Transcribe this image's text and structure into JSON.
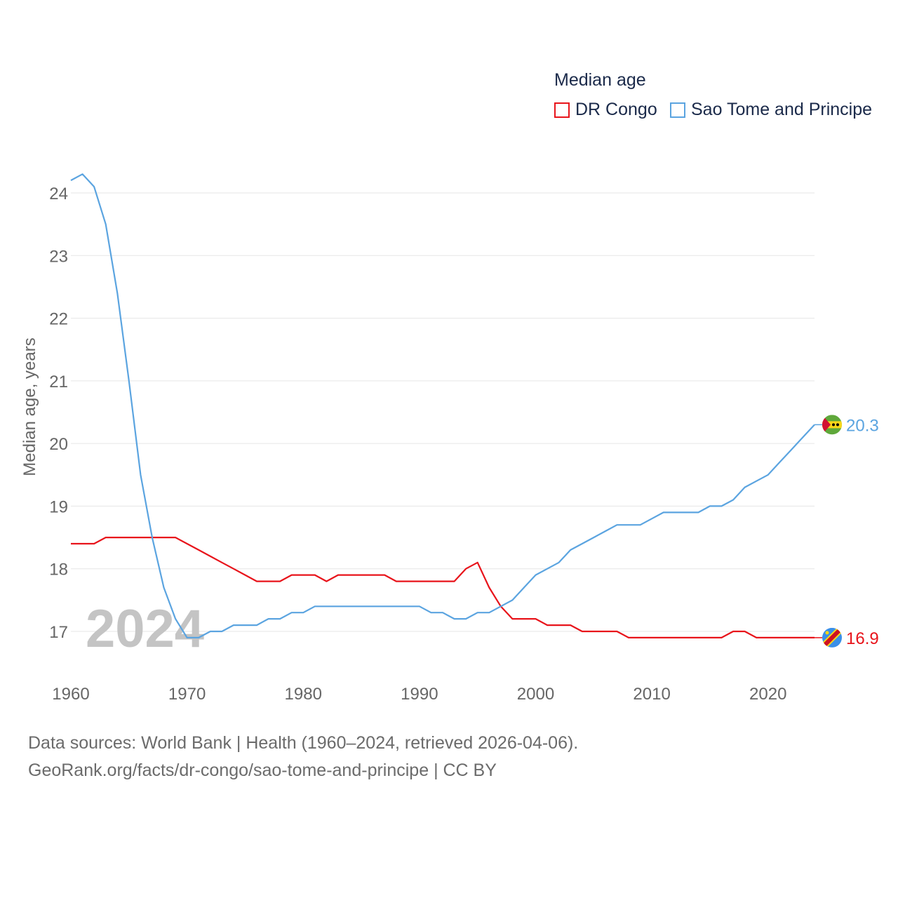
{
  "legend": {
    "title": "Median age",
    "items": [
      {
        "label": "DR Congo",
        "color": "#e8141b"
      },
      {
        "label": "Sao Tome and Principe",
        "color": "#5ba4e0"
      }
    ]
  },
  "source": {
    "line1": "Data sources: World Bank | Health (1960–2024, retrieved 2026-04-06).",
    "line2": "GeoRank.org/facts/dr-congo/sao-tome-and-principe | CC BY"
  },
  "chart_data": {
    "type": "line",
    "title": "Median age",
    "ylabel": "Median age, years",
    "xlabel": "",
    "watermark": "2024",
    "xlim": [
      1960,
      2024
    ],
    "ylim": [
      16.4,
      24.45
    ],
    "x_ticks": [
      1960,
      1970,
      1980,
      1990,
      2000,
      2010,
      2020
    ],
    "y_ticks": [
      17,
      18,
      19,
      20,
      21,
      22,
      23,
      24
    ],
    "grid": true,
    "legend_position": "top-right",
    "x": [
      1960,
      1961,
      1962,
      1963,
      1964,
      1965,
      1966,
      1967,
      1968,
      1969,
      1970,
      1971,
      1972,
      1973,
      1974,
      1975,
      1976,
      1977,
      1978,
      1979,
      1980,
      1981,
      1982,
      1983,
      1984,
      1985,
      1986,
      1987,
      1988,
      1989,
      1990,
      1991,
      1992,
      1993,
      1994,
      1995,
      1996,
      1997,
      1998,
      1999,
      2000,
      2001,
      2002,
      2003,
      2004,
      2005,
      2006,
      2007,
      2008,
      2009,
      2010,
      2011,
      2012,
      2013,
      2014,
      2015,
      2016,
      2017,
      2018,
      2019,
      2020,
      2021,
      2022,
      2023,
      2024
    ],
    "series": [
      {
        "name": "DR Congo",
        "color": "#e8141b",
        "end_label": "16.9",
        "values": [
          18.4,
          18.4,
          18.4,
          18.5,
          18.5,
          18.5,
          18.5,
          18.5,
          18.5,
          18.5,
          18.4,
          18.3,
          18.2,
          18.1,
          18.0,
          17.9,
          17.8,
          17.8,
          17.8,
          17.9,
          17.9,
          17.9,
          17.8,
          17.9,
          17.9,
          17.9,
          17.9,
          17.9,
          17.8,
          17.8,
          17.8,
          17.8,
          17.8,
          17.8,
          18.0,
          18.1,
          17.7,
          17.4,
          17.2,
          17.2,
          17.2,
          17.1,
          17.1,
          17.1,
          17.0,
          17.0,
          17.0,
          17.0,
          16.9,
          16.9,
          16.9,
          16.9,
          16.9,
          16.9,
          16.9,
          16.9,
          16.9,
          17.0,
          17.0,
          16.9,
          16.9,
          16.9,
          16.9,
          16.9,
          16.9
        ]
      },
      {
        "name": "Sao Tome and Principe",
        "color": "#5ba4e0",
        "end_label": "20.3",
        "values": [
          24.2,
          24.3,
          24.1,
          23.5,
          22.4,
          21.0,
          19.5,
          18.5,
          17.7,
          17.2,
          16.9,
          16.9,
          17.0,
          17.0,
          17.1,
          17.1,
          17.1,
          17.2,
          17.2,
          17.3,
          17.3,
          17.4,
          17.4,
          17.4,
          17.4,
          17.4,
          17.4,
          17.4,
          17.4,
          17.4,
          17.4,
          17.3,
          17.3,
          17.2,
          17.2,
          17.3,
          17.3,
          17.4,
          17.5,
          17.7,
          17.9,
          18.0,
          18.1,
          18.3,
          18.4,
          18.5,
          18.6,
          18.7,
          18.7,
          18.7,
          18.8,
          18.9,
          18.9,
          18.9,
          18.9,
          19.0,
          19.0,
          19.1,
          19.3,
          19.4,
          19.5,
          19.7,
          19.9,
          20.1,
          20.3
        ]
      }
    ]
  }
}
